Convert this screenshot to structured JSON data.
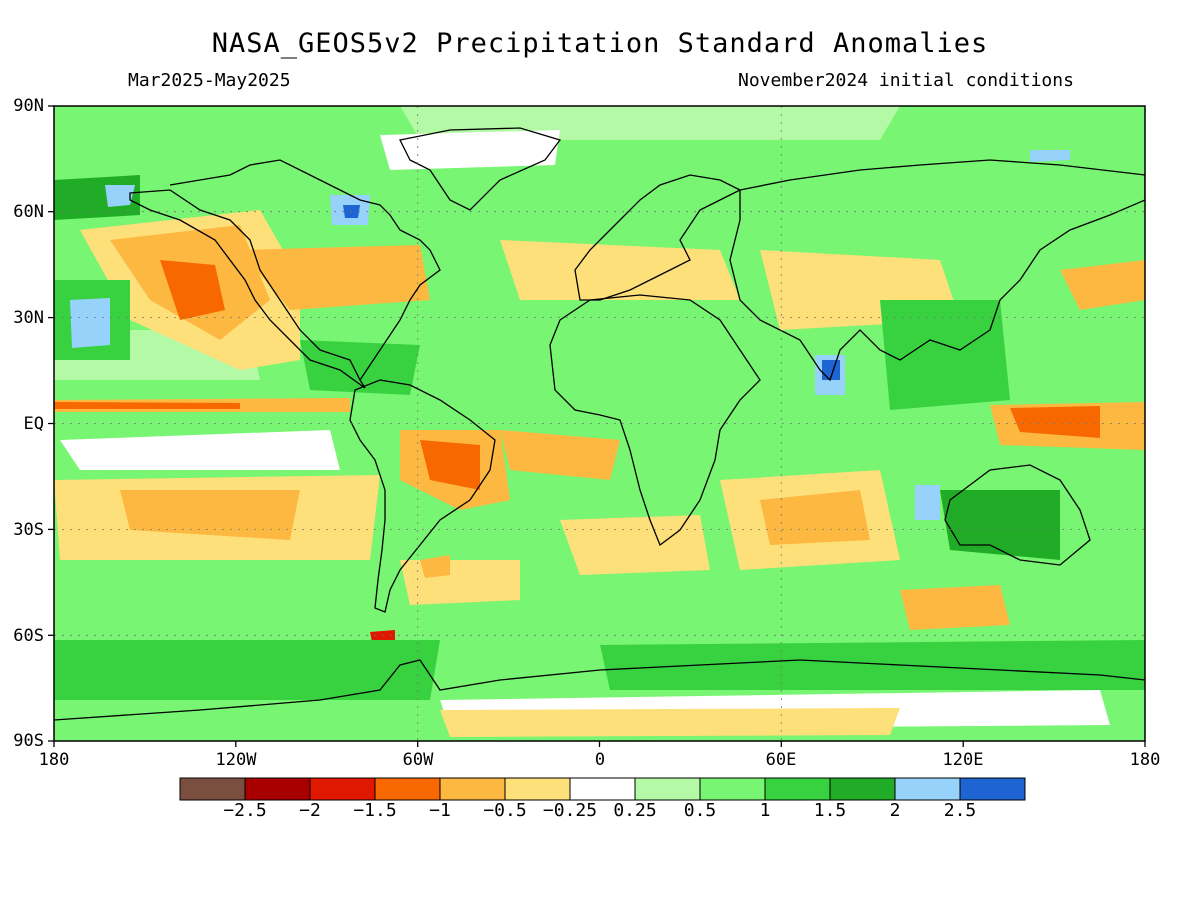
{
  "header": {
    "title": "NASA_GEOS5v2 Precipitation Standard Anomalies",
    "period": "Mar2025-May2025",
    "init": "November2024 initial conditions"
  },
  "axes": {
    "lat_labels": [
      "90N",
      "60N",
      "30N",
      "EQ",
      "30S",
      "60S",
      "90S"
    ],
    "lon_labels": [
      "180",
      "120W",
      "60W",
      "0",
      "60E",
      "120E",
      "180"
    ]
  },
  "colorbar": {
    "colors": [
      "#7b4f40",
      "#a80000",
      "#e01800",
      "#f86800",
      "#fdb842",
      "#fde07a",
      "#ffffff",
      "#b4f9a6",
      "#78f572",
      "#38d240",
      "#20ac26",
      "#96d2fa",
      "#1e64d2"
    ],
    "labels": [
      "-2.5",
      "-2",
      "-1.5",
      "-1",
      "-0.5",
      "-0.25",
      "0.25",
      "0.5",
      "1",
      "1.5",
      "2",
      "2.5"
    ]
  },
  "map_colors": {
    "land_outline": "#000000",
    "grid": "#777777"
  }
}
